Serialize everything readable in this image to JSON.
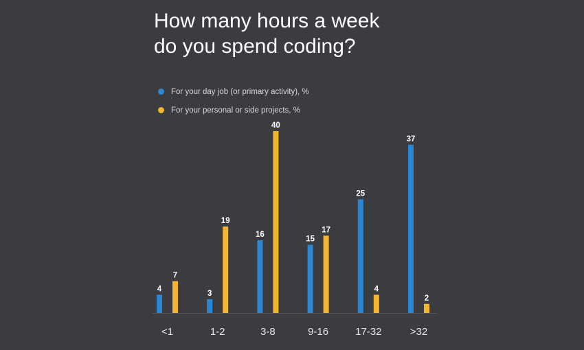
{
  "chart_data": {
    "type": "bar",
    "title": [
      "How many hours a week",
      "do you spend coding?"
    ],
    "categories": [
      "<1",
      "1-2",
      "3-8",
      "9-16",
      "17-32",
      ">32"
    ],
    "series": [
      {
        "name": "For your day job (or primary activity), %",
        "color": "#2b86d3",
        "values": [
          4,
          3,
          16,
          15,
          25,
          37
        ]
      },
      {
        "name": "For your personal or side projects, %",
        "color": "#f4b531",
        "values": [
          7,
          19,
          40,
          17,
          4,
          2
        ]
      }
    ],
    "ylim": [
      0,
      40
    ],
    "grid": false,
    "legend": "top-left"
  }
}
